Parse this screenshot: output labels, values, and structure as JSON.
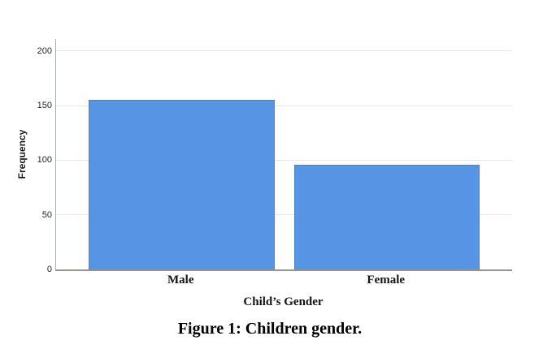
{
  "figure": {
    "caption": "Figure 1: Children gender."
  },
  "chart_data": {
    "type": "bar",
    "title": "",
    "categories": [
      "Male",
      "Female"
    ],
    "values": [
      155,
      96
    ],
    "xlabel": "Child’s Gender",
    "ylabel": "Frequency",
    "ylim": [
      0,
      211
    ],
    "yticks": [
      0,
      50,
      100,
      150,
      200
    ],
    "grid": true,
    "legend": "none",
    "bar_color": "#5795E4"
  }
}
